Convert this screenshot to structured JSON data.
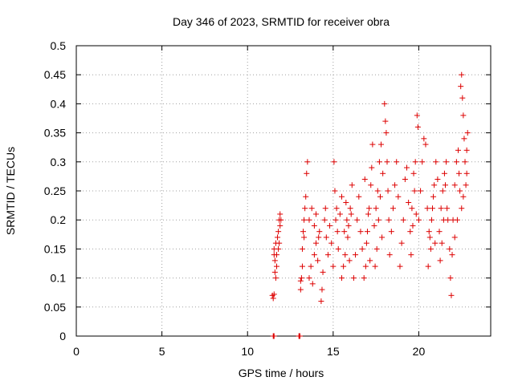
{
  "chart_data": {
    "type": "scatter",
    "title": "Day 346 of 2023, SRMTID for receiver obra",
    "xlabel": "GPS time / hours",
    "ylabel": "SRMTID / TECUs",
    "xlim": [
      0,
      24.2
    ],
    "ylim": [
      0,
      0.5
    ],
    "xticks": [
      0,
      5,
      10,
      15,
      20
    ],
    "yticks": [
      0,
      0.05,
      0.1,
      0.15,
      0.2,
      0.25,
      0.3,
      0.35,
      0.4,
      0.45,
      0.5
    ],
    "ytick_labels": [
      "0",
      "0.05",
      "0.1",
      "0.15",
      "0.2",
      "0.25",
      "0.3",
      "0.35",
      "0.4",
      "0.45",
      "0.5"
    ],
    "grid": true,
    "marker": "+",
    "color": "#dd0000",
    "series": [
      {
        "name": "SRMTID",
        "points": [
          [
            11.5,
            0.0
          ],
          [
            11.52,
            0.0
          ],
          [
            11.55,
            0.0
          ],
          [
            13.0,
            0.0
          ],
          [
            13.03,
            0.0
          ],
          [
            13.06,
            0.0
          ],
          [
            11.45,
            0.07
          ],
          [
            11.5,
            0.065
          ],
          [
            11.55,
            0.072
          ],
          [
            11.55,
            0.15
          ],
          [
            11.6,
            0.13
          ],
          [
            11.65,
            0.16
          ],
          [
            11.7,
            0.14
          ],
          [
            11.6,
            0.11
          ],
          [
            11.75,
            0.17
          ],
          [
            11.8,
            0.18
          ],
          [
            11.85,
            0.2
          ],
          [
            11.9,
            0.19
          ],
          [
            11.8,
            0.15
          ],
          [
            11.7,
            0.12
          ],
          [
            11.65,
            0.1
          ],
          [
            11.9,
            0.21
          ],
          [
            11.95,
            0.2
          ],
          [
            11.85,
            0.16
          ],
          [
            11.55,
            0.14
          ],
          [
            13.1,
            0.08
          ],
          [
            13.15,
            0.1
          ],
          [
            13.2,
            0.12
          ],
          [
            13.1,
            0.095
          ],
          [
            13.25,
            0.18
          ],
          [
            13.3,
            0.2
          ],
          [
            13.35,
            0.22
          ],
          [
            13.4,
            0.24
          ],
          [
            13.2,
            0.15
          ],
          [
            13.3,
            0.17
          ],
          [
            13.45,
            0.28
          ],
          [
            13.5,
            0.3
          ],
          [
            13.6,
            0.1
          ],
          [
            13.7,
            0.12
          ],
          [
            13.8,
            0.09
          ],
          [
            13.9,
            0.14
          ],
          [
            14.0,
            0.16
          ],
          [
            14.1,
            0.13
          ],
          [
            13.6,
            0.2
          ],
          [
            13.75,
            0.22
          ],
          [
            13.9,
            0.19
          ],
          [
            14.0,
            0.21
          ],
          [
            14.15,
            0.17
          ],
          [
            14.2,
            0.18
          ],
          [
            14.3,
            0.06
          ],
          [
            14.35,
            0.08
          ],
          [
            14.4,
            0.11
          ],
          [
            14.5,
            0.2
          ],
          [
            14.55,
            0.22
          ],
          [
            14.6,
            0.17
          ],
          [
            14.7,
            0.14
          ],
          [
            14.8,
            0.19
          ],
          [
            14.9,
            0.16
          ],
          [
            15.0,
            0.12
          ],
          [
            15.05,
            0.3
          ],
          [
            15.1,
            0.25
          ],
          [
            15.15,
            0.2
          ],
          [
            15.2,
            0.22
          ],
          [
            15.25,
            0.18
          ],
          [
            15.3,
            0.15
          ],
          [
            15.4,
            0.21
          ],
          [
            15.5,
            0.24
          ],
          [
            15.6,
            0.12
          ],
          [
            15.7,
            0.14
          ],
          [
            15.8,
            0.2
          ],
          [
            15.9,
            0.19
          ],
          [
            16.0,
            0.22
          ],
          [
            16.1,
            0.26
          ],
          [
            15.5,
            0.1
          ],
          [
            15.65,
            0.18
          ],
          [
            15.75,
            0.23
          ],
          [
            15.85,
            0.17
          ],
          [
            15.95,
            0.13
          ],
          [
            16.05,
            0.21
          ],
          [
            16.2,
            0.1
          ],
          [
            16.3,
            0.14
          ],
          [
            16.4,
            0.2
          ],
          [
            16.5,
            0.24
          ],
          [
            16.6,
            0.18
          ],
          [
            16.7,
            0.15
          ],
          [
            16.8,
            0.1
          ],
          [
            16.9,
            0.12
          ],
          [
            17.0,
            0.18
          ],
          [
            17.1,
            0.22
          ],
          [
            17.2,
            0.26
          ],
          [
            17.3,
            0.33
          ],
          [
            16.85,
            0.27
          ],
          [
            16.95,
            0.16
          ],
          [
            17.05,
            0.21
          ],
          [
            17.15,
            0.13
          ],
          [
            17.25,
            0.29
          ],
          [
            17.4,
            0.19
          ],
          [
            17.5,
            0.22
          ],
          [
            17.6,
            0.25
          ],
          [
            17.7,
            0.3
          ],
          [
            17.8,
            0.33
          ],
          [
            17.9,
            0.28
          ],
          [
            17.45,
            0.12
          ],
          [
            17.55,
            0.15
          ],
          [
            17.65,
            0.2
          ],
          [
            17.75,
            0.24
          ],
          [
            17.85,
            0.17
          ],
          [
            18.0,
            0.4
          ],
          [
            18.05,
            0.37
          ],
          [
            18.1,
            0.35
          ],
          [
            18.15,
            0.3
          ],
          [
            18.2,
            0.25
          ],
          [
            18.25,
            0.2
          ],
          [
            18.3,
            0.14
          ],
          [
            18.4,
            0.18
          ],
          [
            18.5,
            0.22
          ],
          [
            18.6,
            0.26
          ],
          [
            18.7,
            0.3
          ],
          [
            18.8,
            0.24
          ],
          [
            18.9,
            0.12
          ],
          [
            19.0,
            0.16
          ],
          [
            19.1,
            0.2
          ],
          [
            19.2,
            0.27
          ],
          [
            19.3,
            0.29
          ],
          [
            19.4,
            0.23
          ],
          [
            19.5,
            0.18
          ],
          [
            19.6,
            0.22
          ],
          [
            19.7,
            0.28
          ],
          [
            19.8,
            0.3
          ],
          [
            19.9,
            0.38
          ],
          [
            19.95,
            0.36
          ],
          [
            19.55,
            0.14
          ],
          [
            19.65,
            0.19
          ],
          [
            19.75,
            0.25
          ],
          [
            19.85,
            0.21
          ],
          [
            20.0,
            0.2
          ],
          [
            20.1,
            0.25
          ],
          [
            20.2,
            0.3
          ],
          [
            20.3,
            0.34
          ],
          [
            20.4,
            0.33
          ],
          [
            20.5,
            0.22
          ],
          [
            20.6,
            0.18
          ],
          [
            20.7,
            0.15
          ],
          [
            20.8,
            0.22
          ],
          [
            20.9,
            0.26
          ],
          [
            21.0,
            0.3
          ],
          [
            21.1,
            0.27
          ],
          [
            20.55,
            0.12
          ],
          [
            20.65,
            0.17
          ],
          [
            20.75,
            0.2
          ],
          [
            20.85,
            0.24
          ],
          [
            20.95,
            0.16
          ],
          [
            21.2,
            0.18
          ],
          [
            21.3,
            0.22
          ],
          [
            21.4,
            0.25
          ],
          [
            21.5,
            0.28
          ],
          [
            21.6,
            0.3
          ],
          [
            21.7,
            0.2
          ],
          [
            21.25,
            0.13
          ],
          [
            21.35,
            0.16
          ],
          [
            21.45,
            0.2
          ],
          [
            21.55,
            0.26
          ],
          [
            21.65,
            0.22
          ],
          [
            21.8,
            0.15
          ],
          [
            21.85,
            0.1
          ],
          [
            21.9,
            0.07
          ],
          [
            21.95,
            0.14
          ],
          [
            22.0,
            0.2
          ],
          [
            22.1,
            0.26
          ],
          [
            22.2,
            0.3
          ],
          [
            22.3,
            0.32
          ],
          [
            22.35,
            0.28
          ],
          [
            22.4,
            0.25
          ],
          [
            22.1,
            0.17
          ],
          [
            22.25,
            0.2
          ],
          [
            22.45,
            0.43
          ],
          [
            22.5,
            0.45
          ],
          [
            22.55,
            0.41
          ],
          [
            22.6,
            0.38
          ],
          [
            22.65,
            0.34
          ],
          [
            22.7,
            0.3
          ],
          [
            22.75,
            0.26
          ],
          [
            22.8,
            0.32
          ],
          [
            22.85,
            0.35
          ],
          [
            22.6,
            0.24
          ],
          [
            22.5,
            0.22
          ],
          [
            22.8,
            0.28
          ]
        ]
      }
    ]
  }
}
